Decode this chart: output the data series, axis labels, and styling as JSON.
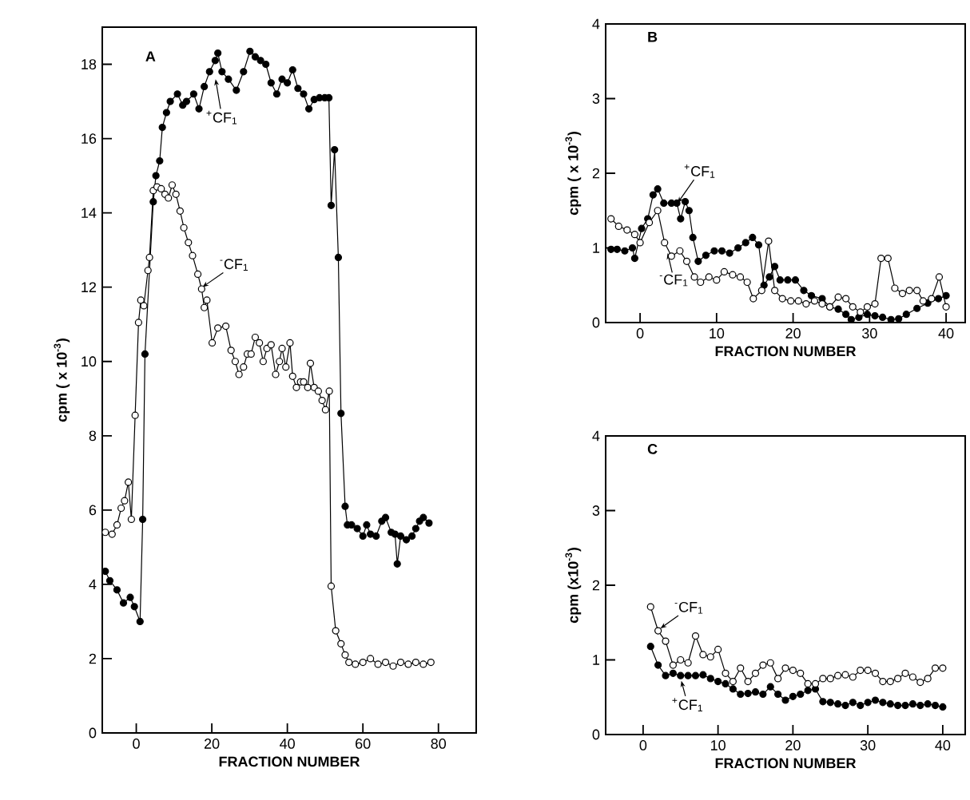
{
  "chart_data": [
    {
      "type": "line",
      "title": "A",
      "xlabel": "FRACTION NUMBER",
      "ylabel": "cpm ( x 10$^{-3}$)",
      "xlim": [
        -9,
        90
      ],
      "ylim": [
        0,
        19
      ],
      "xticks": [
        0,
        20,
        40,
        60,
        80
      ],
      "yticks": [
        0,
        2,
        4,
        6,
        8,
        10,
        12,
        14,
        16,
        18
      ],
      "marker": "circle",
      "line_style": "solid",
      "grid": false,
      "series": [
        {
          "color": "#000000",
          "x": [
            -8.2,
            -7,
            -5.1,
            -3.4,
            -1.6,
            -0.5,
            1.0,
            1.7,
            2.3,
            4.5,
            5.2,
            6.2,
            6.9,
            8,
            9,
            10.9,
            12.3,
            13.3,
            15.2,
            16.6,
            18,
            19.4,
            20.9,
            21.6,
            22.7,
            24.4,
            26.5,
            28.4,
            30.1,
            31.5,
            32.9,
            34.3,
            35.7,
            37.2,
            38.6,
            40,
            41.4,
            42.8,
            44.3,
            45.7,
            47.1,
            48.5,
            49.9,
            51.0,
            51.6,
            52.5,
            53.5,
            54.2,
            55.3,
            55.9,
            57,
            58.5,
            60,
            61,
            62,
            63.5,
            65,
            66,
            67.5,
            68.5,
            69.1,
            70,
            71.5,
            73,
            74,
            75,
            76,
            77.5
          ],
          "values": [
            4.35,
            4.1,
            3.85,
            3.5,
            3.65,
            3.4,
            3.0,
            5.75,
            10.2,
            14.3,
            15.0,
            15.4,
            16.3,
            16.7,
            17.0,
            17.2,
            16.9,
            17.0,
            17.2,
            16.8,
            17.4,
            17.8,
            18.1,
            18.3,
            17.8,
            17.6,
            17.3,
            17.8,
            18.35,
            18.2,
            18.1,
            18.0,
            17.5,
            17.2,
            17.6,
            17.5,
            17.85,
            17.35,
            17.2,
            16.8,
            17.05,
            17.1,
            17.1,
            17.1,
            14.2,
            15.7,
            12.8,
            8.6,
            6.1,
            5.6,
            5.6,
            5.5,
            5.3,
            5.6,
            5.35,
            5.3,
            5.7,
            5.8,
            5.4,
            5.35,
            4.55,
            5.3,
            5.2,
            5.3,
            5.5,
            5.7,
            5.8,
            5.65
          ]
        },
        {
          "color": "#000000",
          "x": [
            -8.2,
            -6.4,
            -5.1,
            -4,
            -3.1,
            -2.1,
            -1.3,
            -0.3,
            0.6,
            1.2,
            2.0,
            3.1,
            3.5,
            4.5,
            5.5,
            6.6,
            7.6,
            8.5,
            9.5,
            10.5,
            11.6,
            12.6,
            13.8,
            14.9,
            16.3,
            17.3,
            18,
            18.7,
            20.1,
            21.6,
            23.7,
            25.1,
            26.2,
            27.2,
            28.4,
            29.4,
            30.4,
            31.5,
            32.6,
            33.6,
            34.6,
            35.7,
            36.9,
            37.9,
            38.6,
            39.6,
            40.7,
            41.4,
            42.4,
            43.5,
            44.3,
            45.4,
            46.1,
            47.1,
            48.2,
            49.2,
            50.1,
            51.1,
            51.6,
            52.8,
            54.2,
            55.3,
            56.3,
            58,
            60,
            62,
            64,
            66,
            68,
            70,
            72,
            74,
            76,
            78
          ],
          "values": [
            5.4,
            5.35,
            5.6,
            6.05,
            6.25,
            6.75,
            5.75,
            8.55,
            11.05,
            11.65,
            11.5,
            12.45,
            12.8,
            14.6,
            14.7,
            14.65,
            14.5,
            14.4,
            14.75,
            14.5,
            14.05,
            13.6,
            13.2,
            12.85,
            12.35,
            11.95,
            11.45,
            11.65,
            10.5,
            10.9,
            10.95,
            10.3,
            10.0,
            9.65,
            9.85,
            10.2,
            10.2,
            10.65,
            10.5,
            10.0,
            10.35,
            10.45,
            9.65,
            10.0,
            10.35,
            9.85,
            10.5,
            9.6,
            9.3,
            9.45,
            9.45,
            9.3,
            9.95,
            9.3,
            9.2,
            8.95,
            8.7,
            9.2,
            3.95,
            2.75,
            2.4,
            2.1,
            1.9,
            1.85,
            1.9,
            2.0,
            1.85,
            1.9,
            1.8,
            1.9,
            1.85,
            1.9,
            1.85,
            1.9
          ]
        }
      ],
      "annotations": [
        {
          "text": "$^{+}$CF$_{1}$",
          "x": 21,
          "y": 17.6
        },
        {
          "text": "$^{-}$CF$_{1}$",
          "x": 17.5,
          "y": 12
        }
      ]
    },
    {
      "type": "line",
      "title": "B",
      "xlabel": "FRACTION NUMBER",
      "ylabel": "cpm ( x 10$^{-3}$)",
      "xlim": [
        -4.5,
        42.5
      ],
      "ylim": [
        0,
        4
      ],
      "xticks": [
        0,
        10,
        20,
        30,
        40
      ],
      "yticks": [
        0,
        1,
        2,
        3,
        4
      ],
      "marker": "circle",
      "line_style": "solid",
      "grid": false,
      "series": [
        {
          "color": "#000000",
          "x": [
            -3.8,
            -3,
            -2,
            -1,
            -0.7,
            0.2,
            1,
            1.7,
            2.3,
            3.1,
            4.1,
            4.8,
            5.3,
            5.9,
            6.4,
            6.9,
            7.6,
            8.6,
            9.7,
            10.7,
            11.7,
            12.8,
            13.8,
            14.7,
            15.5,
            16.2,
            16.9,
            17.6,
            18.3,
            19.3,
            20.3,
            21.4,
            22.4,
            23.8,
            24.8,
            25.9,
            26.9,
            27.6,
            28.6,
            29.7,
            30.7,
            31.7,
            32.8,
            33.8,
            34.8,
            36.2,
            37.6,
            39.0,
            40.0
          ],
          "values": [
            0.98,
            0.98,
            0.96,
            1.0,
            0.86,
            1.26,
            1.39,
            1.71,
            1.79,
            1.6,
            1.6,
            1.6,
            1.39,
            1.62,
            1.5,
            1.14,
            0.82,
            0.9,
            0.96,
            0.96,
            0.93,
            1.0,
            1.07,
            1.14,
            1.04,
            0.5,
            0.61,
            0.75,
            0.57,
            0.57,
            0.57,
            0.43,
            0.36,
            0.32,
            0.21,
            0.18,
            0.11,
            0.04,
            0.07,
            0.11,
            0.09,
            0.07,
            0.04,
            0.05,
            0.11,
            0.19,
            0.26,
            0.32,
            0.36
          ]
        },
        {
          "color": "#000000",
          "x": [
            -3.8,
            -2.8,
            -1.7,
            -0.7,
            0,
            1.2,
            2.3,
            3.2,
            4.1,
            5.2,
            6.1,
            7.1,
            7.9,
            9.0,
            10,
            11,
            12.1,
            13.1,
            14,
            14.8,
            15.9,
            16.8,
            17.6,
            18.6,
            19.7,
            20.7,
            21.7,
            22.8,
            23.8,
            24.8,
            25.9,
            26.9,
            27.8,
            28.8,
            29.7,
            30.7,
            31.5,
            32.4,
            33.3,
            34.3,
            35.2,
            36.2,
            37.0,
            38.1,
            39.1,
            40.0
          ],
          "values": [
            1.39,
            1.29,
            1.24,
            1.18,
            1.07,
            1.34,
            1.5,
            1.07,
            0.89,
            0.96,
            0.82,
            0.61,
            0.54,
            0.61,
            0.57,
            0.68,
            0.64,
            0.61,
            0.54,
            0.32,
            0.43,
            1.09,
            0.43,
            0.32,
            0.29,
            0.29,
            0.25,
            0.29,
            0.25,
            0.21,
            0.34,
            0.32,
            0.21,
            0.14,
            0.21,
            0.25,
            0.86,
            0.86,
            0.46,
            0.39,
            0.43,
            0.43,
            0.29,
            0.32,
            0.61,
            0.21
          ]
        }
      ],
      "annotations": [
        {
          "text": "$^{+}$CF$_{1}$",
          "x": 4.9,
          "y": 1.6
        },
        {
          "text": "$^{-}$CF$_{1}$",
          "x": 3.6,
          "y": 0.93
        }
      ]
    },
    {
      "type": "line",
      "title": "C",
      "xlabel": "FRACTION NUMBER",
      "ylabel": "cpm (x10$^{-3}$)",
      "xlim": [
        -5,
        43
      ],
      "ylim": [
        0,
        4
      ],
      "xticks": [
        0,
        10,
        20,
        30,
        40
      ],
      "yticks": [
        0,
        1,
        2,
        3,
        4
      ],
      "marker": "circle",
      "line_style": "solid",
      "grid": false,
      "series": [
        {
          "color": "#000000",
          "x": [
            1,
            2,
            3,
            4,
            5,
            6,
            7,
            8,
            9,
            10,
            11,
            12,
            13,
            14,
            15,
            16,
            17,
            18,
            19,
            20,
            21,
            22,
            23,
            24,
            25,
            26,
            27,
            28,
            29,
            30,
            31,
            32,
            33,
            34,
            35,
            36,
            37,
            38,
            39,
            40
          ],
          "values": [
            1.18,
            0.93,
            0.79,
            0.82,
            0.79,
            0.79,
            0.79,
            0.8,
            0.75,
            0.71,
            0.68,
            0.61,
            0.54,
            0.55,
            0.57,
            0.54,
            0.64,
            0.54,
            0.46,
            0.51,
            0.54,
            0.59,
            0.61,
            0.44,
            0.43,
            0.41,
            0.39,
            0.43,
            0.39,
            0.43,
            0.46,
            0.43,
            0.41,
            0.39,
            0.39,
            0.41,
            0.39,
            0.41,
            0.39,
            0.37
          ]
        },
        {
          "color": "#000000",
          "x": [
            1,
            2,
            3,
            4,
            5,
            6,
            7,
            8,
            9,
            10,
            11,
            12,
            13,
            14,
            15,
            16,
            17,
            18,
            19,
            20,
            21,
            22,
            23,
            24,
            25,
            26,
            27,
            28,
            29,
            30,
            31,
            32,
            33,
            34,
            35,
            36,
            37,
            38,
            39,
            40
          ],
          "values": [
            1.71,
            1.39,
            1.25,
            0.93,
            1.0,
            0.96,
            1.32,
            1.07,
            1.04,
            1.14,
            0.82,
            0.71,
            0.89,
            0.71,
            0.82,
            0.93,
            0.96,
            0.75,
            0.89,
            0.86,
            0.82,
            0.68,
            0.68,
            0.75,
            0.75,
            0.79,
            0.8,
            0.77,
            0.86,
            0.86,
            0.82,
            0.71,
            0.71,
            0.75,
            0.82,
            0.77,
            0.7,
            0.75,
            0.89,
            0.89
          ]
        }
      ],
      "annotations": [
        {
          "text": "$^{-}$CF$_{1}$",
          "x": 2.3,
          "y": 1.42
        },
        {
          "text": "$^{+}$CF$_{1}$",
          "x": 5.1,
          "y": 0.72
        }
      ]
    }
  ]
}
